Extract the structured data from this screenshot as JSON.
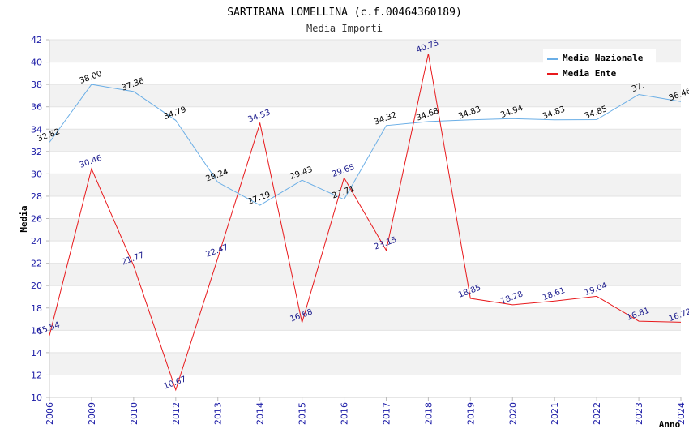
{
  "chart_data": {
    "type": "line",
    "title": "SARTIRANA LOMELLINA (c.f.00464360189)",
    "subtitle": "Media Importi",
    "ylabel": "Media",
    "xlabel": "Anno",
    "ylim": [
      10,
      42
    ],
    "yticks": [
      10,
      12,
      14,
      16,
      18,
      20,
      22,
      24,
      26,
      28,
      30,
      32,
      34,
      36,
      38,
      40,
      42
    ],
    "categories": [
      "2006",
      "2009",
      "2010",
      "2012",
      "2013",
      "2014",
      "2015",
      "2016",
      "2017",
      "2018",
      "2019",
      "2020",
      "2021",
      "2022",
      "2023",
      "2024"
    ],
    "series": [
      {
        "name": "Media Nazionale",
        "color": "#6aaee6",
        "values": [
          32.82,
          38.0,
          37.36,
          34.79,
          29.24,
          27.19,
          29.43,
          27.71,
          34.32,
          34.68,
          34.83,
          34.94,
          34.83,
          34.85,
          37.1,
          36.46
        ],
        "labels": [
          "32.82",
          "38.00",
          "37.36",
          "34.79",
          "29.24",
          "27.19",
          "29.43",
          "27.71",
          "34.32",
          "34.68",
          "34.83",
          "34.94",
          "34.83",
          "34.85",
          "37.",
          "36.46"
        ]
      },
      {
        "name": "Media Ente",
        "color": "#e8191c",
        "values": [
          15.54,
          30.46,
          21.77,
          10.67,
          22.47,
          34.53,
          16.68,
          29.65,
          23.15,
          40.75,
          18.85,
          18.28,
          18.61,
          19.04,
          16.81,
          16.72
        ],
        "labels": [
          "15.54",
          "30.46",
          "21.77",
          "10.67",
          "22.47",
          "34.53",
          "16.68",
          "29.65",
          "23.15",
          "40.75",
          "18.85",
          "18.28",
          "18.61",
          "19.04",
          "16.81",
          "16.72"
        ]
      }
    ],
    "grid": true,
    "legend": "top-right"
  }
}
